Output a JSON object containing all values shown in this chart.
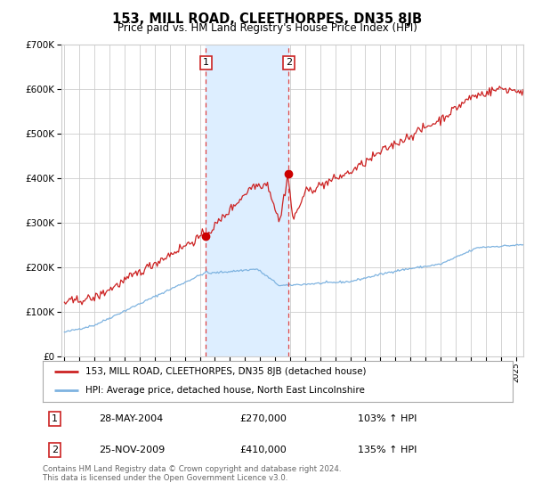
{
  "title": "153, MILL ROAD, CLEETHORPES, DN35 8JB",
  "subtitle": "Price paid vs. HM Land Registry's House Price Index (HPI)",
  "hpi_label": "HPI: Average price, detached house, North East Lincolnshire",
  "price_label": "153, MILL ROAD, CLEETHORPES, DN35 8JB (detached house)",
  "sale1_label": "28-MAY-2004",
  "sale1_price": 270000,
  "sale1_hpi_pct": "103%",
  "sale2_label": "25-NOV-2009",
  "sale2_price": 410000,
  "sale2_hpi_pct": "135%",
  "sale1_x": 2004.4,
  "sale2_x": 2009.9,
  "xmin": 1994.8,
  "xmax": 2025.5,
  "ymin": 0,
  "ymax": 700000,
  "yticks": [
    0,
    100000,
    200000,
    300000,
    400000,
    500000,
    600000,
    700000
  ],
  "background_color": "#ffffff",
  "plot_bg_color": "#ffffff",
  "grid_color": "#cccccc",
  "hpi_color": "#7eb3e0",
  "price_color": "#cc2222",
  "shade_color": "#ddeeff",
  "vline_color": "#dd4444",
  "marker_color": "#cc0000",
  "footer_text": "Contains HM Land Registry data © Crown copyright and database right 2024.\nThis data is licensed under the Open Government Licence v3.0."
}
